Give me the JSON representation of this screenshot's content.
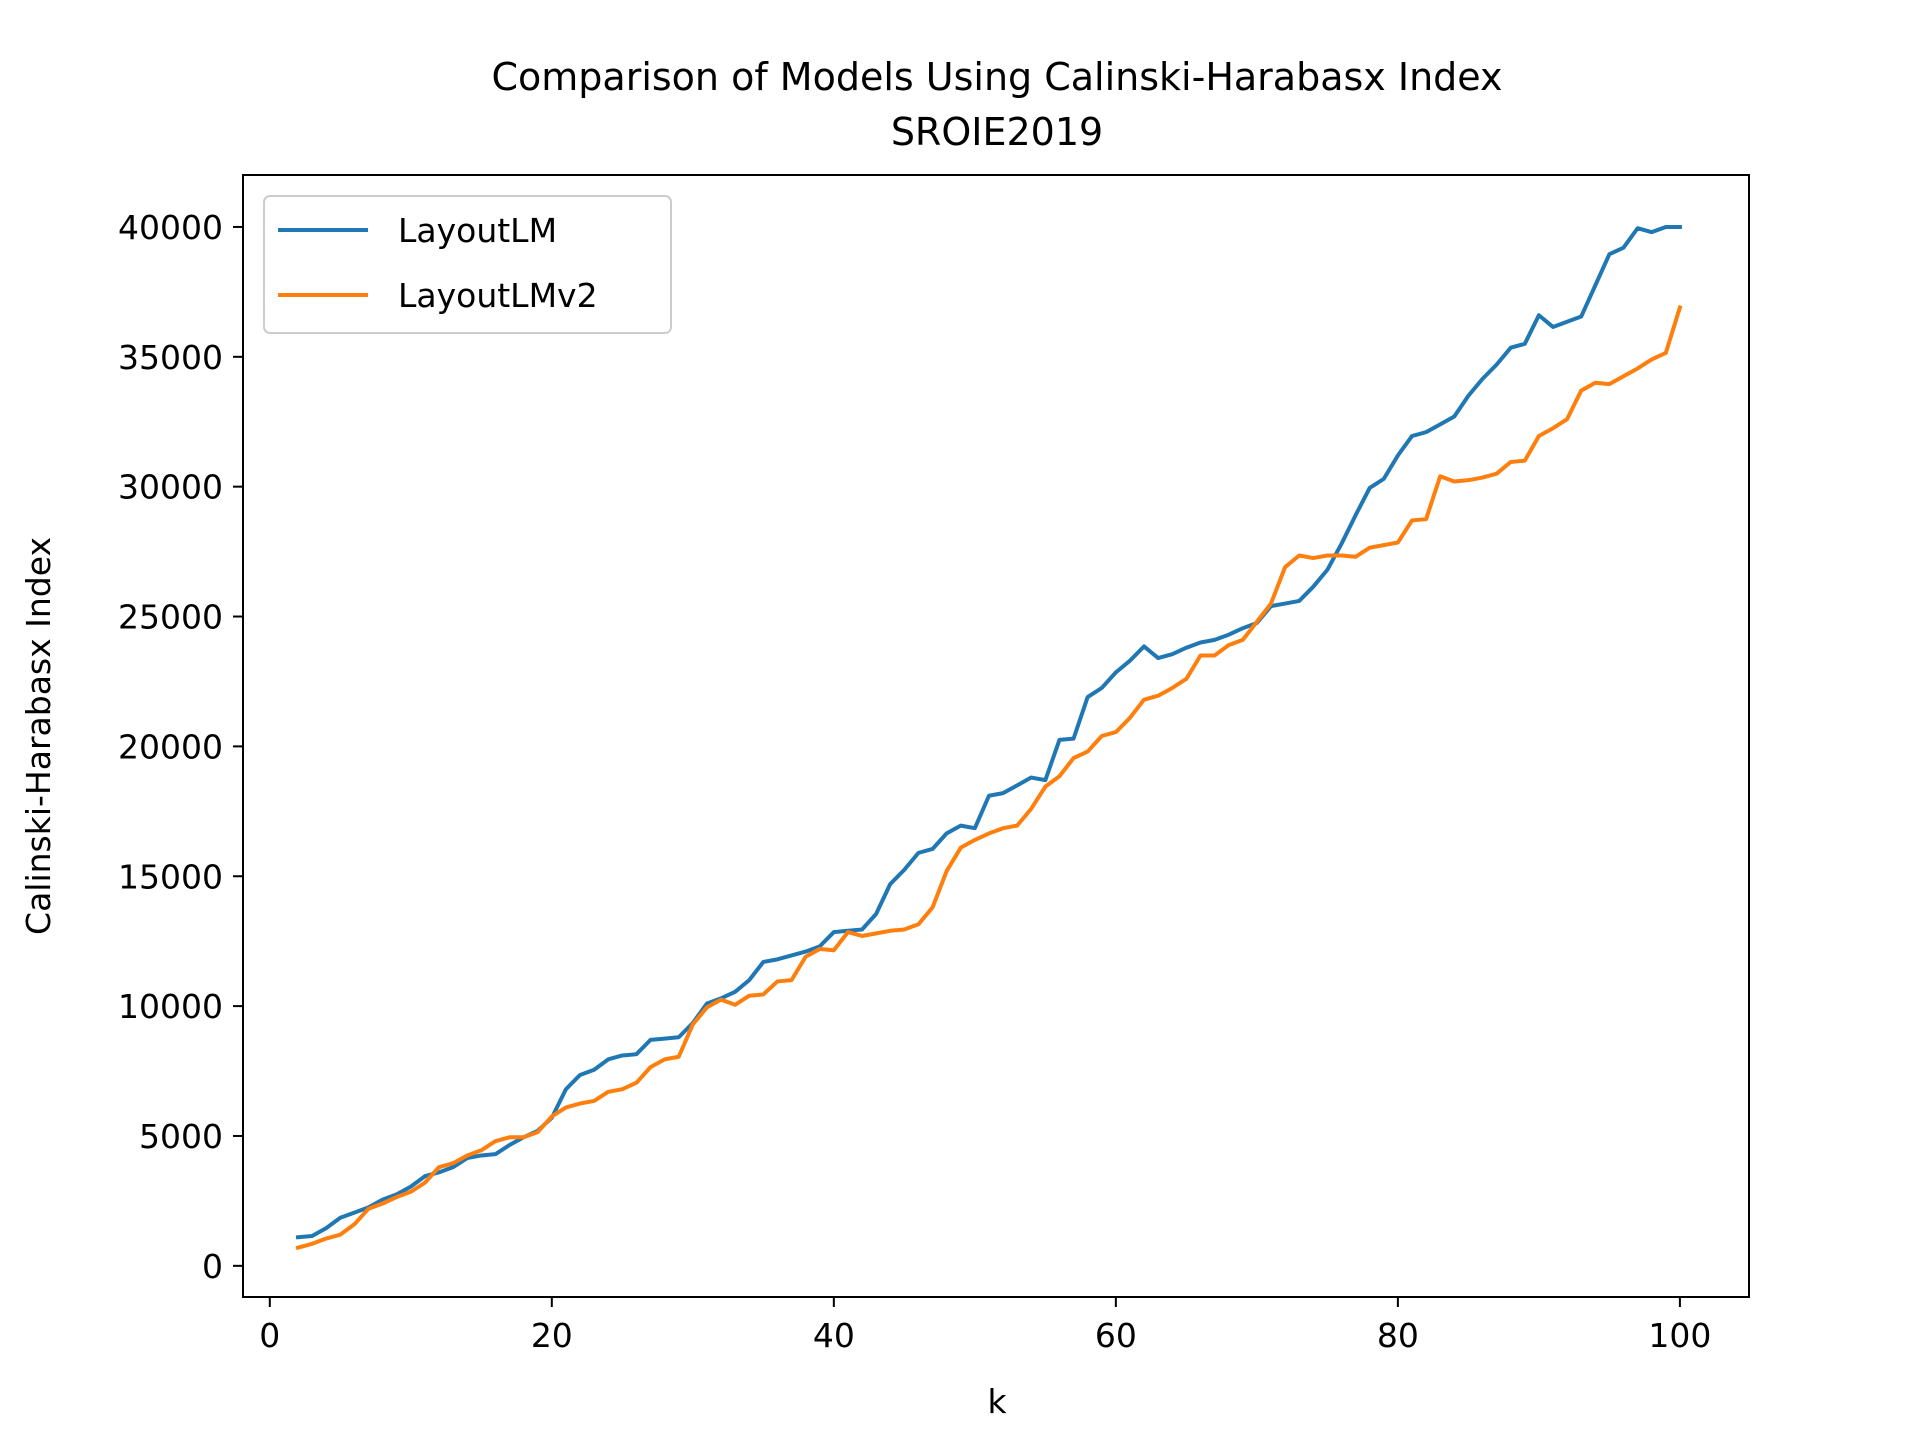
{
  "chart_data": {
    "type": "line",
    "title": "Comparison of Models Using Calinski-Harabasx Index",
    "subtitle": "SROIE2019",
    "xlabel": "k",
    "ylabel": "Calinski-Harabasx Index",
    "xlim": [
      -1.9,
      104.9
    ],
    "ylim": [
      -1200,
      42000
    ],
    "xticks": [
      0,
      20,
      40,
      60,
      80,
      100
    ],
    "xtick_labels": [
      "0",
      "20",
      "40",
      "60",
      "80",
      "100"
    ],
    "yticks": [
      0,
      5000,
      10000,
      15000,
      20000,
      25000,
      30000,
      35000,
      40000
    ],
    "ytick_labels": [
      "0",
      "5000",
      "10000",
      "15000",
      "20000",
      "25000",
      "30000",
      "35000",
      "40000"
    ],
    "grid": false,
    "legend_position": "top-left",
    "x": [
      2,
      3,
      4,
      5,
      6,
      7,
      8,
      9,
      10,
      11,
      12,
      13,
      14,
      15,
      16,
      17,
      18,
      19,
      20,
      21,
      22,
      23,
      24,
      25,
      26,
      27,
      28,
      29,
      30,
      31,
      32,
      33,
      34,
      35,
      36,
      37,
      38,
      39,
      40,
      41,
      42,
      43,
      44,
      45,
      46,
      47,
      48,
      49,
      50,
      51,
      52,
      53,
      54,
      55,
      56,
      57,
      58,
      59,
      60,
      61,
      62,
      63,
      64,
      65,
      66,
      67,
      68,
      69,
      70,
      71,
      72,
      73,
      74,
      75,
      76,
      77,
      78,
      79,
      80,
      81,
      82,
      83,
      84,
      85,
      86,
      87,
      88,
      89,
      90,
      91,
      92,
      93,
      94,
      95,
      96,
      97,
      98,
      99,
      100
    ],
    "series": [
      {
        "name": "LayoutLM",
        "color": "#1f77b4",
        "values": [
          1100,
          1150,
          1450,
          1850,
          2050,
          2250,
          2550,
          2750,
          3050,
          3450,
          3600,
          3800,
          4150,
          4250,
          4300,
          4650,
          4950,
          5200,
          5700,
          6800,
          7350,
          7550,
          7950,
          8100,
          8150,
          8700,
          8750,
          8800,
          9350,
          10100,
          10300,
          10550,
          11000,
          11700,
          11800,
          11950,
          12100,
          12300,
          12850,
          12900,
          12950,
          13550,
          14700,
          15250,
          15900,
          16050,
          16650,
          16950,
          16850,
          18100,
          18200,
          18500,
          18800,
          18700,
          20250,
          20300,
          21900,
          22250,
          22850,
          23300,
          23850,
          23400,
          23550,
          23800,
          24000,
          24100,
          24300,
          24550,
          24750,
          25400,
          25500,
          25600,
          26150,
          26800,
          27800,
          28900,
          29950,
          30300,
          31200,
          31950,
          32100,
          32400,
          32700,
          33500,
          34150,
          34700,
          35350,
          35500,
          36600,
          36150,
          36350,
          36550,
          37750,
          38950,
          39200,
          39950,
          39800,
          40000,
          40000
        ]
      },
      {
        "name": "LayoutLMv2",
        "color": "#ff7f0e",
        "values": [
          700,
          850,
          1050,
          1200,
          1600,
          2200,
          2400,
          2650,
          2850,
          3200,
          3800,
          3950,
          4250,
          4450,
          4800,
          4950,
          4950,
          5150,
          5750,
          6100,
          6250,
          6350,
          6700,
          6800,
          7050,
          7650,
          7950,
          8050,
          9300,
          9950,
          10250,
          10050,
          10400,
          10450,
          10950,
          11000,
          11900,
          12200,
          12150,
          12850,
          12700,
          12800,
          12900,
          12950,
          13150,
          13800,
          15200,
          16100,
          16400,
          16650,
          16850,
          16950,
          17600,
          18450,
          18850,
          19550,
          19800,
          20400,
          20550,
          21100,
          21800,
          21950,
          22250,
          22600,
          23500,
          23500,
          23900,
          24100,
          24800,
          25500,
          26900,
          27350,
          27250,
          27350,
          27350,
          27300,
          27650,
          27750,
          27850,
          28700,
          28750,
          30400,
          30200,
          30250,
          30350,
          30500,
          30950,
          31000,
          31950,
          32250,
          32600,
          33700,
          34000,
          33950,
          34250,
          34550,
          34900,
          35150,
          36900
        ]
      }
    ]
  }
}
